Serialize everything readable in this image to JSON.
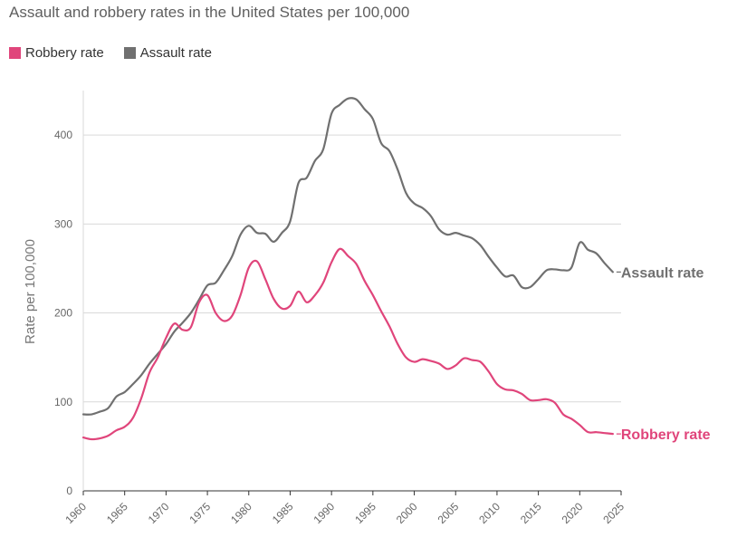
{
  "title": "Assault and robbery rates in the United States per 100,000",
  "chart_data": {
    "type": "line",
    "title": "Assault and robbery rates in the United States per 100,000",
    "ylabel": "Rate per 100,000",
    "xlabel": "",
    "xlim": [
      1960,
      2025
    ],
    "ylim": [
      0,
      450
    ],
    "x_ticks": [
      "1960",
      "1965",
      "1970",
      "1975",
      "1980",
      "1985",
      "1990",
      "1995",
      "2000",
      "2005",
      "2010",
      "2015",
      "2020",
      "2025"
    ],
    "y_ticks": [
      "0",
      "100",
      "200",
      "300",
      "400"
    ],
    "grid": "horizontal",
    "legend_position": "top-left",
    "series": [
      {
        "name": "Robbery rate",
        "color": "#e0457b",
        "end_label": "Robbery rate",
        "x": [
          1960,
          1961,
          1962,
          1963,
          1964,
          1965,
          1966,
          1967,
          1968,
          1969,
          1970,
          1971,
          1972,
          1973,
          1974,
          1975,
          1976,
          1977,
          1978,
          1979,
          1980,
          1981,
          1982,
          1983,
          1984,
          1985,
          1986,
          1987,
          1988,
          1989,
          1990,
          1991,
          1992,
          1993,
          1994,
          1995,
          1996,
          1997,
          1998,
          1999,
          2000,
          2001,
          2002,
          2003,
          2004,
          2005,
          2006,
          2007,
          2008,
          2009,
          2010,
          2011,
          2012,
          2013,
          2014,
          2015,
          2016,
          2017,
          2018,
          2019,
          2020,
          2021,
          2022,
          2023,
          2024
        ],
        "values": [
          60,
          58,
          59,
          62,
          68,
          72,
          82,
          104,
          133,
          150,
          172,
          188,
          181,
          184,
          212,
          220,
          200,
          191,
          197,
          220,
          251,
          258,
          238,
          216,
          205,
          208,
          224,
          212,
          220,
          234,
          257,
          272,
          264,
          255,
          236,
          220,
          202,
          185,
          165,
          150,
          145,
          148,
          146,
          143,
          137,
          141,
          149,
          147,
          145,
          134,
          120,
          114,
          113,
          109,
          102,
          102,
          103,
          99,
          86,
          81,
          74,
          66,
          66,
          65,
          64
        ]
      },
      {
        "name": "Assault rate",
        "color": "#707070",
        "end_label": "Assault rate",
        "x": [
          1960,
          1961,
          1962,
          1963,
          1964,
          1965,
          1966,
          1967,
          1968,
          1969,
          1970,
          1971,
          1972,
          1973,
          1974,
          1975,
          1976,
          1977,
          1978,
          1979,
          1980,
          1981,
          1982,
          1983,
          1984,
          1985,
          1986,
          1987,
          1988,
          1989,
          1990,
          1991,
          1992,
          1993,
          1994,
          1995,
          1996,
          1997,
          1998,
          1999,
          2000,
          2001,
          2002,
          2003,
          2004,
          2005,
          2006,
          2007,
          2008,
          2009,
          2010,
          2011,
          2012,
          2013,
          2014,
          2015,
          2016,
          2017,
          2018,
          2019,
          2020,
          2021,
          2022,
          2023,
          2024
        ],
        "values": [
          86,
          86,
          89,
          93,
          106,
          111,
          120,
          130,
          143,
          154,
          165,
          179,
          189,
          200,
          215,
          231,
          234,
          248,
          264,
          288,
          298,
          290,
          289,
          280,
          290,
          303,
          346,
          352,
          371,
          384,
          424,
          434,
          441,
          440,
          429,
          418,
          391,
          382,
          361,
          335,
          323,
          318,
          309,
          294,
          288,
          290,
          287,
          284,
          276,
          263,
          251,
          241,
          242,
          229,
          229,
          238,
          248,
          249,
          248,
          251,
          279,
          271,
          267,
          256,
          246
        ]
      }
    ]
  }
}
